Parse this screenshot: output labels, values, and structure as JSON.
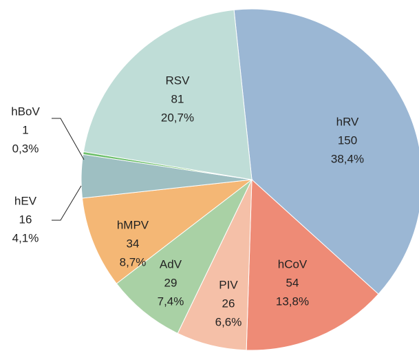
{
  "chart_data": {
    "type": "pie",
    "categories": [
      "hRV",
      "hCoV",
      "PIV",
      "AdV",
      "hMPV",
      "hEV",
      "hBoV",
      "RSV"
    ],
    "values": [
      150,
      54,
      26,
      29,
      34,
      16,
      1,
      81
    ],
    "percent_labels": [
      "38,4%",
      "13,8%",
      "6,6%",
      "7,4%",
      "8,7%",
      "4,1%",
      "0,3%",
      "20,7%"
    ],
    "colors": [
      "#9bb7d4",
      "#ee8b76",
      "#f5c0a8",
      "#a9d1a5",
      "#f4b775",
      "#9ebfc2",
      "#6cbf6a",
      "#bfddd7"
    ]
  }
}
